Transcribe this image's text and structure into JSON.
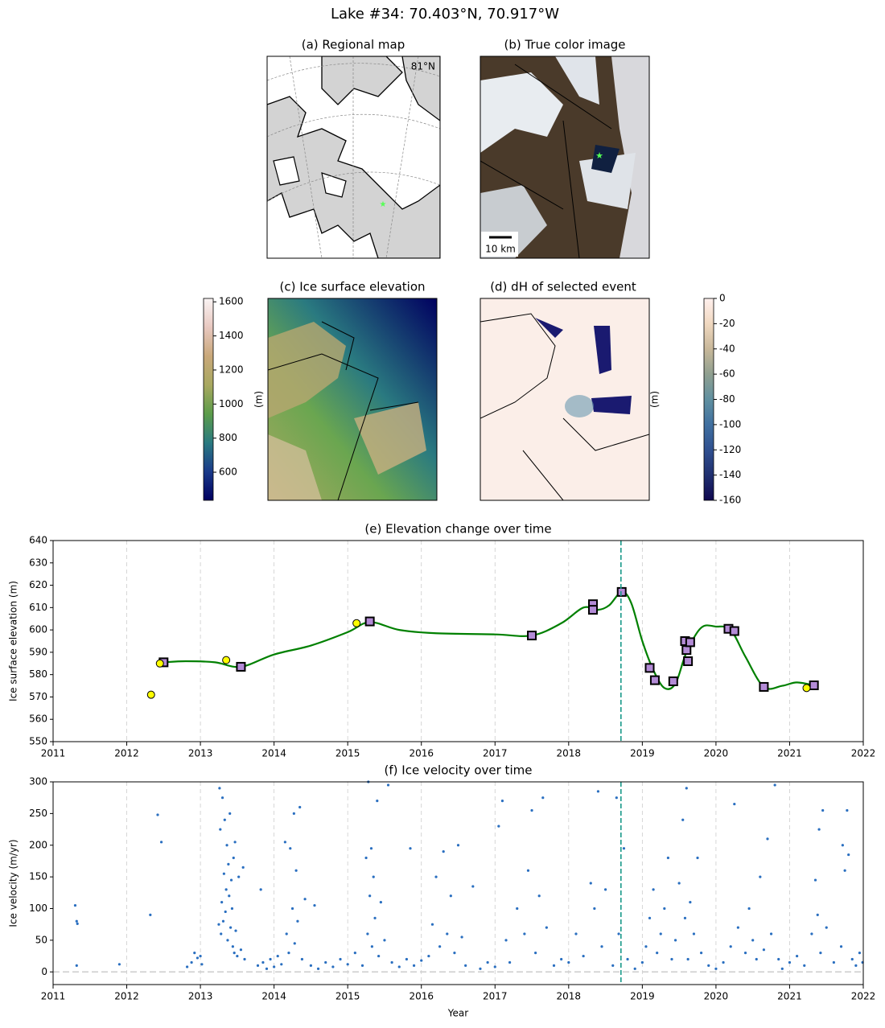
{
  "title": "Lake #34: 70.403°N, 70.917°W",
  "chart_data": [
    {
      "type": "map",
      "title": "(a) Regional map",
      "labels": [
        "81°N"
      ]
    },
    {
      "type": "image",
      "title": "(b) True color image",
      "scale_bar": "10 km"
    },
    {
      "type": "heatmap",
      "title": "(c) Ice surface elevation",
      "colorbar": {
        "label": "(m)",
        "lim": [
          435,
          1620
        ],
        "ticks": [
          600,
          800,
          1000,
          1200,
          1400,
          1600
        ],
        "cmap": [
          "#000060",
          "#1a3a8a",
          "#2a7a80",
          "#5c9c4a",
          "#a8a860",
          "#c9a87a",
          "#e8c8c0",
          "#faf4f4"
        ]
      }
    },
    {
      "type": "heatmap",
      "title": "(d) dH of selected event",
      "colorbar": {
        "label": "(m)",
        "lim": [
          -160,
          0
        ],
        "ticks": [
          -160,
          -140,
          -120,
          -100,
          -80,
          -60,
          -40,
          -20,
          0
        ],
        "cmap": [
          "#100850",
          "#203070",
          "#305090",
          "#4070a0",
          "#6090a0",
          "#90a090",
          "#c8b89a",
          "#f0d8c0",
          "#fff0ee"
        ]
      }
    },
    {
      "type": "line",
      "title": "(e) Elevation change over time",
      "ylabel": "Ice surface elevation (m)",
      "xlim": [
        2011,
        2022
      ],
      "xticks": [
        2011,
        2012,
        2013,
        2014,
        2015,
        2016,
        2017,
        2018,
        2019,
        2020,
        2021,
        2022
      ],
      "ylim": [
        550,
        640
      ],
      "yticks": [
        550,
        560,
        570,
        580,
        590,
        600,
        610,
        620,
        630,
        640
      ],
      "grid": true,
      "event_x": 2018.71,
      "event_color": "#1a9a8a",
      "line": {
        "color": "#008000",
        "x": [
          2012.5,
          2012.8,
          2013.2,
          2013.55,
          2014,
          2014.5,
          2015,
          2015.3,
          2015.7,
          2016.2,
          2017,
          2017.5,
          2017.9,
          2018.2,
          2018.4,
          2018.55,
          2018.72,
          2018.85,
          2019.0,
          2019.15,
          2019.3,
          2019.45,
          2019.6,
          2019.8,
          2020.0,
          2020.2,
          2020.4,
          2020.65,
          2020.9,
          2021.1,
          2021.35
        ],
        "values": [
          585.5,
          586,
          585.5,
          583.5,
          589,
          593,
          599,
          603.5,
          600,
          598.5,
          598,
          597.5,
          603,
          610,
          609,
          611,
          617,
          612,
          595,
          582,
          574,
          576,
          590,
          601,
          601.5,
          600,
          588,
          574.5,
          575,
          576.5,
          575
        ]
      },
      "squares": {
        "color": "#b38bd6",
        "x": [
          2012.5,
          2013.55,
          2015.3,
          2017.5,
          2018.33,
          2018.33,
          2018.72,
          2019.1,
          2019.17,
          2019.42,
          2019.58,
          2019.6,
          2019.62,
          2019.65,
          2020.17,
          2020.25,
          2020.65,
          2021.33
        ],
        "values": [
          585.5,
          583.5,
          603.8,
          597.5,
          611.5,
          609,
          617,
          583,
          577.5,
          577,
          595,
          591,
          586,
          594.5,
          600.5,
          599.5,
          574.5,
          575.2
        ]
      },
      "circles": {
        "color": "#ffff00",
        "x": [
          2012.33,
          2012.45,
          2013.35,
          2015.12,
          2021.23
        ],
        "values": [
          571,
          585,
          586.5,
          603,
          574
        ]
      }
    },
    {
      "type": "scatter",
      "title": "(f) Ice velocity over time",
      "ylabel": "Ice velocity (m/yr)",
      "xlabel": "Year",
      "xlim": [
        2011,
        2022
      ],
      "xticks": [
        2011,
        2012,
        2013,
        2014,
        2015,
        2016,
        2017,
        2018,
        2019,
        2020,
        2021,
        2022
      ],
      "ylim": [
        -20,
        300
      ],
      "yticks": [
        0,
        50,
        100,
        150,
        200,
        250,
        300
      ],
      "grid": true,
      "event_x": 2018.71,
      "event_color": "#1a9a8a",
      "color": "#2a6fc0",
      "x": [
        2011.3,
        2011.32,
        2011.33,
        2011.32,
        2011.9,
        2012.32,
        2012.42,
        2012.47,
        2012.82,
        2012.88,
        2012.92,
        2012.96,
        2013.0,
        2013.02,
        2013.25,
        2013.26,
        2013.27,
        2013.28,
        2013.29,
        2013.3,
        2013.31,
        2013.32,
        2013.33,
        2013.34,
        2013.35,
        2013.36,
        2013.37,
        2013.38,
        2013.39,
        2013.4,
        2013.41,
        2013.42,
        2013.43,
        2013.44,
        2013.45,
        2013.46,
        2013.47,
        2013.48,
        2013.5,
        2013.52,
        2013.55,
        2013.58,
        2013.6,
        2013.78,
        2013.82,
        2013.85,
        2013.9,
        2013.95,
        2014.0,
        2014.05,
        2014.1,
        2014.15,
        2014.17,
        2014.2,
        2014.22,
        2014.25,
        2014.27,
        2014.28,
        2014.3,
        2014.32,
        2014.35,
        2014.38,
        2014.42,
        2014.5,
        2014.55,
        2014.6,
        2014.7,
        2014.8,
        2014.9,
        2015.0,
        2015.1,
        2015.2,
        2015.25,
        2015.27,
        2015.28,
        2015.3,
        2015.32,
        2015.33,
        2015.35,
        2015.37,
        2015.4,
        2015.42,
        2015.45,
        2015.5,
        2015.55,
        2015.6,
        2015.7,
        2015.8,
        2015.85,
        2015.9,
        2016.0,
        2016.1,
        2016.15,
        2016.2,
        2016.25,
        2016.3,
        2016.35,
        2016.4,
        2016.45,
        2016.5,
        2016.55,
        2016.6,
        2016.7,
        2016.8,
        2016.9,
        2017.0,
        2017.05,
        2017.1,
        2017.15,
        2017.2,
        2017.3,
        2017.4,
        2017.45,
        2017.5,
        2017.55,
        2017.6,
        2017.65,
        2017.7,
        2017.8,
        2017.9,
        2018.0,
        2018.1,
        2018.2,
        2018.3,
        2018.35,
        2018.4,
        2018.45,
        2018.5,
        2018.6,
        2018.65,
        2018.68,
        2018.75,
        2018.8,
        2018.9,
        2019.0,
        2019.05,
        2019.1,
        2019.15,
        2019.2,
        2019.25,
        2019.3,
        2019.35,
        2019.4,
        2019.45,
        2019.5,
        2019.55,
        2019.58,
        2019.6,
        2019.62,
        2019.65,
        2019.7,
        2019.75,
        2019.8,
        2019.9,
        2020.0,
        2020.1,
        2020.2,
        2020.25,
        2020.3,
        2020.4,
        2020.45,
        2020.5,
        2020.55,
        2020.6,
        2020.65,
        2020.7,
        2020.75,
        2020.8,
        2020.85,
        2020.9,
        2021.0,
        2021.1,
        2021.2,
        2021.3,
        2021.35,
        2021.38,
        2021.4,
        2021.42,
        2021.45,
        2021.5,
        2021.6,
        2021.7,
        2021.72,
        2021.75,
        2021.78,
        2021.8,
        2021.85,
        2021.9,
        2021.95,
        2021.99
      ],
      "values": [
        105,
        80,
        76,
        10,
        12,
        90,
        248,
        205,
        8,
        15,
        30,
        22,
        25,
        12,
        75,
        290,
        225,
        60,
        110,
        275,
        80,
        155,
        240,
        95,
        130,
        200,
        50,
        170,
        120,
        250,
        70,
        145,
        100,
        40,
        180,
        30,
        205,
        65,
        25,
        150,
        35,
        165,
        20,
        10,
        130,
        15,
        5,
        20,
        8,
        25,
        12,
        205,
        60,
        30,
        195,
        100,
        250,
        45,
        160,
        80,
        260,
        20,
        115,
        10,
        105,
        5,
        15,
        8,
        20,
        12,
        30,
        10,
        180,
        60,
        300,
        120,
        195,
        40,
        150,
        85,
        270,
        25,
        110,
        50,
        295,
        15,
        8,
        20,
        195,
        10,
        18,
        25,
        75,
        150,
        40,
        190,
        60,
        120,
        30,
        200,
        55,
        10,
        135,
        5,
        15,
        8,
        230,
        270,
        50,
        15,
        100,
        60,
        160,
        255,
        30,
        120,
        275,
        70,
        10,
        20,
        15,
        60,
        25,
        140,
        100,
        285,
        40,
        130,
        10,
        275,
        60,
        195,
        20,
        5,
        15,
        40,
        85,
        130,
        30,
        60,
        100,
        180,
        20,
        50,
        140,
        240,
        85,
        290,
        20,
        110,
        60,
        180,
        30,
        10,
        5,
        15,
        40,
        265,
        70,
        30,
        100,
        50,
        20,
        150,
        35,
        210,
        60,
        295,
        20,
        5,
        15,
        25,
        10,
        60,
        145,
        90,
        225,
        30,
        255,
        70,
        15,
        40,
        200,
        160,
        255,
        185,
        20,
        10,
        30,
        15
      ]
    }
  ]
}
